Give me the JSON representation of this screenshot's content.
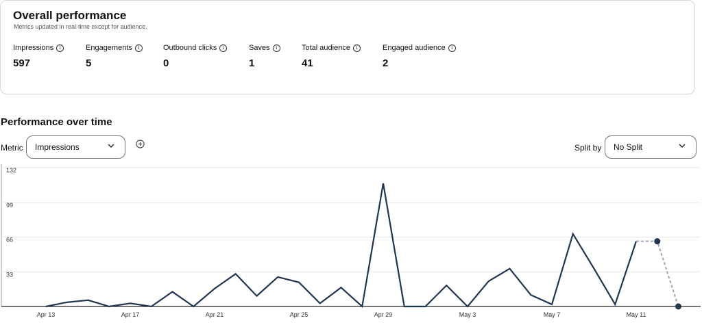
{
  "overall": {
    "title": "Overall performance",
    "subtitle": "Metrics updated in real-time except for audience.",
    "metrics": [
      {
        "label": "Impressions",
        "value": "597"
      },
      {
        "label": "Engagements",
        "value": "5"
      },
      {
        "label": "Outbound clicks",
        "value": "0"
      },
      {
        "label": "Saves",
        "value": "1"
      },
      {
        "label": "Total audience",
        "value": "41"
      },
      {
        "label": "Engaged audience",
        "value": "2"
      }
    ],
    "info_icon": "i"
  },
  "performance": {
    "title": "Performance over time",
    "metric_label": "Metric",
    "metric_selected": "Impressions",
    "split_label": "Split by",
    "split_selected": "No Split"
  },
  "chart_data": {
    "type": "line",
    "y_ticks": [
      "132",
      "99",
      "66",
      "33"
    ],
    "ylim": [
      0,
      132
    ],
    "x_ticks": [
      {
        "label": "Apr 13",
        "index": 0
      },
      {
        "label": "Apr 17",
        "index": 4
      },
      {
        "label": "Apr 21",
        "index": 8
      },
      {
        "label": "Apr 25",
        "index": 12
      },
      {
        "label": "Apr 29",
        "index": 16
      },
      {
        "label": "May 3",
        "index": 20
      },
      {
        "label": "May 7",
        "index": 24
      },
      {
        "label": "May 11",
        "index": 28
      }
    ],
    "values": [
      0,
      4,
      6,
      0,
      3,
      0,
      14,
      0,
      17,
      31,
      10,
      28,
      23,
      3,
      18,
      0,
      117,
      0,
      0,
      20,
      0,
      24,
      36,
      11,
      2,
      69,
      36,
      2,
      62
    ],
    "projected_values": [
      62,
      62,
      0
    ],
    "projected_start_index": 28,
    "line_color": "#1f3550",
    "projected_color": "#9ea4b5",
    "grid_color": "#e6e6e6"
  }
}
